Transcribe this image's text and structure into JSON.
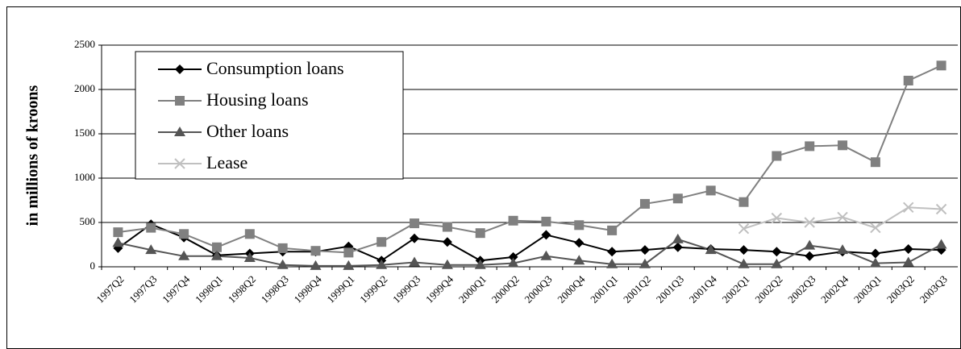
{
  "chart_data": {
    "type": "line",
    "y_label": "in millions of kroons",
    "categories": [
      "1997Q2",
      "1997Q3",
      "1997Q4",
      "1998Q1",
      "1998Q2",
      "1998Q3",
      "1998Q4",
      "1999Q1",
      "1999Q2",
      "1999Q3",
      "1999Q4",
      "2000Q1",
      "2000Q2",
      "2000Q3",
      "2000Q4",
      "2001Q1",
      "2001Q2",
      "2001Q3",
      "2001Q4",
      "2002Q1",
      "2002Q2",
      "2002Q3",
      "2002Q4",
      "2003Q1",
      "2003Q2",
      "2003Q3"
    ],
    "series": [
      {
        "name": "Consumption loans",
        "color": "#000000",
        "marker": "diamond",
        "values": [
          210,
          480,
          330,
          130,
          150,
          170,
          170,
          230,
          70,
          320,
          280,
          70,
          110,
          360,
          270,
          170,
          190,
          220,
          200,
          190,
          170,
          120,
          170,
          150,
          200,
          190
        ]
      },
      {
        "name": "Housing loans",
        "color": "#808080",
        "marker": "square",
        "values": [
          390,
          440,
          370,
          220,
          370,
          210,
          180,
          160,
          280,
          490,
          450,
          380,
          520,
          510,
          470,
          410,
          710,
          770,
          860,
          730,
          1250,
          1360,
          1370,
          1180,
          2100,
          2270
        ]
      },
      {
        "name": "Other loans",
        "color": "#555555",
        "marker": "triangle",
        "values": [
          270,
          190,
          120,
          120,
          100,
          20,
          10,
          10,
          20,
          50,
          20,
          20,
          40,
          120,
          70,
          30,
          30,
          310,
          190,
          30,
          30,
          240,
          190,
          40,
          50,
          250
        ]
      },
      {
        "name": "Lease",
        "color": "#c0c0c0",
        "marker": "x",
        "values": [
          null,
          null,
          null,
          null,
          null,
          null,
          null,
          null,
          null,
          null,
          null,
          null,
          null,
          null,
          null,
          null,
          null,
          null,
          null,
          430,
          550,
          500,
          560,
          440,
          670,
          650
        ]
      }
    ],
    "ylim": [
      0,
      2500
    ],
    "yticks": [
      0,
      500,
      1000,
      1500,
      2000,
      2500
    ],
    "grid": true,
    "legend": "top-left"
  }
}
